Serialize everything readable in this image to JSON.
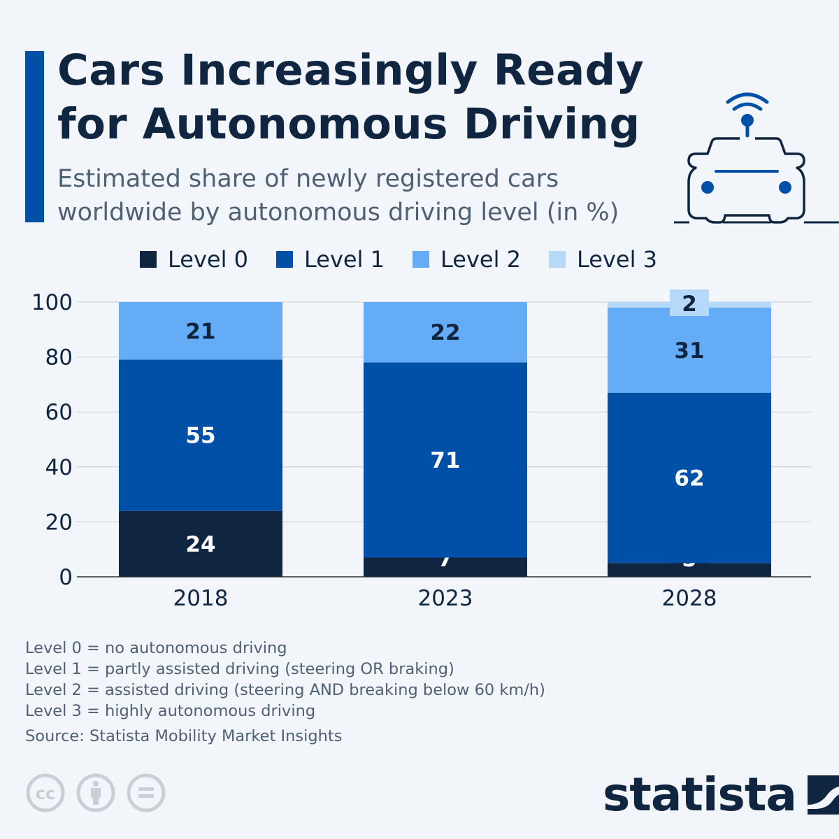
{
  "header": {
    "title_line1": "Cars Increasingly Ready",
    "title_line2": "for Autonomous Driving",
    "subtitle_line1": "Estimated share of newly registered cars",
    "subtitle_line2": "worldwide by autonomous driving level (in %)"
  },
  "icon": "car-with-wifi-antenna",
  "chart_data": {
    "type": "bar",
    "stacked": true,
    "categories": [
      "2018",
      "2023",
      "2028"
    ],
    "series": [
      {
        "name": "Level 0",
        "color": "#0f2540",
        "values": [
          24,
          7,
          5
        ]
      },
      {
        "name": "Level 1",
        "color": "#0050a8",
        "values": [
          55,
          71,
          62
        ]
      },
      {
        "name": "Level 2",
        "color": "#64acf5",
        "values": [
          21,
          22,
          31
        ]
      },
      {
        "name": "Level 3",
        "color": "#b7d9f9",
        "values": [
          0,
          0,
          2
        ]
      }
    ],
    "ylim": [
      0,
      100
    ],
    "yticks": [
      "0",
      "20",
      "40",
      "60",
      "80",
      "100"
    ],
    "grid": true,
    "legend": "top"
  },
  "notes": [
    "Level 0 = no autonomous driving",
    "Level 1 = partly assisted driving (steering OR braking)",
    "Level 2 = assisted driving (steering AND breaking below 60 km/h)",
    "Level 3 = highly autonomous driving"
  ],
  "source": "Source: Statista Mobility Market Insights",
  "footer": {
    "license_icons": [
      "cc-icon",
      "attribution-icon",
      "no-derivatives-icon"
    ],
    "brand": "statista"
  }
}
